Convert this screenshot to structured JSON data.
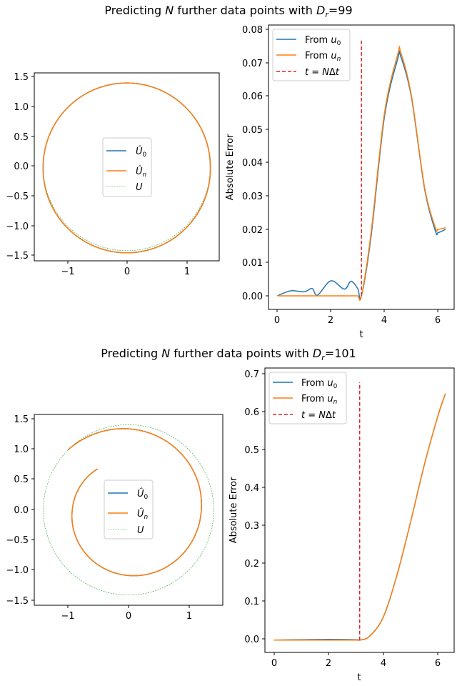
{
  "figure": {
    "colors": {
      "u0": "#1f77b4",
      "un": "#ff7f0e",
      "exact": "#2ca02c",
      "marker": "#d62728"
    },
    "panels": [
      {
        "title": "Predicting N further data points with D_r=99",
        "title_parts": {
          "pre": "Predicting ",
          "N": "N",
          "mid": " further data points with ",
          "D": "D",
          "sub": "r",
          "post": "=99"
        },
        "phase": {
          "xticks": [
            "−1",
            "0",
            "1"
          ],
          "yticks": [
            "1.5",
            "1.0",
            "0.5",
            "0.0",
            "−0.5",
            "−1.0",
            "−1.5"
          ],
          "legend": [
            "Û0",
            "Ûn",
            "U"
          ]
        },
        "error": {
          "xlabel": "t",
          "ylabel": "Absolute Error",
          "xticks": [
            "0",
            "2",
            "4",
            "6"
          ],
          "yticks": [
            "0.00",
            "0.01",
            "0.02",
            "0.03",
            "0.04",
            "0.05",
            "0.06",
            "0.07",
            "0.08"
          ],
          "legend": [
            "From u0",
            "From un",
            "t = NΔt"
          ]
        }
      },
      {
        "title": "Predicting N further data points with D_r=101",
        "title_parts": {
          "pre": "Predicting ",
          "N": "N",
          "mid": " further data points with ",
          "D": "D",
          "sub": "r",
          "post": "=101"
        },
        "phase": {
          "xticks": [
            "−1",
            "0",
            "1"
          ],
          "yticks": [
            "1.5",
            "1.0",
            "0.5",
            "0.0",
            "−0.5",
            "−1.0",
            "−1.5"
          ],
          "legend": [
            "Û0",
            "Ûn",
            "U"
          ]
        },
        "error": {
          "xlabel": "t",
          "ylabel": "Absolute Error",
          "xticks": [
            "0",
            "2",
            "4",
            "6"
          ],
          "yticks": [
            "0.0",
            "0.1",
            "0.2",
            "0.3",
            "0.4",
            "0.5",
            "0.6",
            "0.7"
          ],
          "legend": [
            "From u0",
            "From un",
            "t = NΔt"
          ]
        }
      }
    ]
  },
  "chart_data": [
    {
      "type": "line",
      "title": "Predicting N further data points with D_r=99",
      "xlim": [
        -1.56,
        1.56
      ],
      "ylim": [
        -1.58,
        1.58
      ],
      "series": [
        {
          "name": "Û0",
          "style": "solid",
          "x": [
            -1.0,
            -1.41,
            0,
            1.41,
            0
          ],
          "y": [
            1.0,
            0,
            -1.44,
            0,
            1.41
          ]
        },
        {
          "name": "Ûn",
          "style": "solid",
          "x": [
            -1.0,
            -1.41,
            0,
            1.41,
            0
          ],
          "y": [
            1.0,
            0,
            -1.44,
            0,
            1.41
          ]
        },
        {
          "name": "U",
          "style": "dashed",
          "x": [
            -1.0,
            -1.41,
            0,
            1.41,
            0
          ],
          "y": [
            1.0,
            0,
            -1.41,
            0,
            1.41
          ]
        }
      ],
      "spiral": {
        "start_angle_deg": 135,
        "end_angle_deg": 495,
        "r_start": 1.41,
        "r_end": 1.41,
        "bulge": 0.035
      },
      "grid": false,
      "legend": "center"
    },
    {
      "type": "line",
      "title": "Predicting N further data points with D_r=99",
      "xlabel": "t",
      "ylabel": "Absolute Error",
      "xlim": [
        -0.33,
        6.6
      ],
      "ylim": [
        -0.0041,
        0.0815
      ],
      "x": [
        0,
        0.5,
        1.0,
        1.3,
        1.5,
        2.0,
        2.5,
        2.75,
        3.0,
        3.14,
        3.5,
        4.0,
        4.5,
        4.6,
        5.0,
        5.5,
        5.9,
        6.0,
        6.28
      ],
      "series": [
        {
          "name": "From u0",
          "values": [
            0,
            0.0015,
            0.0012,
            0.0022,
            0.0002,
            0.0045,
            0.002,
            0.0044,
            0.0022,
            0,
            0.018,
            0.054,
            0.0715,
            0.0722,
            0.06,
            0.032,
            0.0195,
            0.019,
            0.02
          ]
        },
        {
          "name": "From un",
          "values": [
            0,
            0,
            0,
            0,
            0,
            0,
            0,
            0,
            0,
            0,
            0.019,
            0.055,
            0.0728,
            0.0735,
            0.0605,
            0.0325,
            0.0205,
            0.02,
            0.0205
          ]
        }
      ],
      "vline": {
        "name": "t = NΔt",
        "x": 3.14,
        "ymin": 0,
        "ymax": 0.077
      },
      "grid": false,
      "legend": "top-left"
    },
    {
      "type": "line",
      "title": "Predicting N further data points with D_r=101",
      "xlim": [
        -1.56,
        1.56
      ],
      "ylim": [
        -1.58,
        1.58
      ],
      "series": [
        {
          "name": "Û0",
          "style": "solid",
          "x": [
            -1.0,
            0,
            1.41,
            0,
            -1.11,
            -0.75
          ],
          "y": [
            1.0,
            1.41,
            0,
            -1.43,
            -0.45,
            0.4
          ]
        },
        {
          "name": "Ûn",
          "style": "solid",
          "x": [
            -1.0,
            0,
            1.41,
            0,
            -1.11,
            -0.75
          ],
          "y": [
            1.0,
            1.41,
            0,
            -1.43,
            -0.45,
            0.4
          ]
        },
        {
          "name": "U",
          "style": "dashed",
          "x": [
            -1.0,
            0,
            1.41,
            0,
            -1.41,
            -1.0
          ],
          "y": [
            1.0,
            1.41,
            0,
            -1.41,
            0,
            1.0
          ]
        }
      ],
      "spiral": {
        "start_angle_deg": 135,
        "end_angle_deg": -233,
        "r_start": 1.41,
        "r_end": 0.85,
        "bulge": 0.02
      },
      "grid": false,
      "legend": "center"
    },
    {
      "type": "line",
      "title": "Predicting N further data points with D_r=101",
      "xlabel": "t",
      "ylabel": "Absolute Error",
      "xlim": [
        -0.33,
        6.6
      ],
      "ylim": [
        -0.0325,
        0.7175
      ],
      "x": [
        0,
        1.0,
        2.0,
        3.0,
        3.14,
        3.5,
        4.0,
        4.5,
        5.0,
        5.5,
        6.0,
        6.28
      ],
      "series": [
        {
          "name": "From u0",
          "values": [
            0,
            0.001,
            0.002,
            0.001,
            0,
            0.01,
            0.06,
            0.17,
            0.31,
            0.46,
            0.59,
            0.65
          ]
        },
        {
          "name": "From un",
          "values": [
            0,
            0,
            0,
            0,
            0,
            0.01,
            0.06,
            0.17,
            0.31,
            0.46,
            0.59,
            0.65
          ]
        }
      ],
      "vline": {
        "name": "t = NΔt",
        "x": 3.14,
        "ymin": 0,
        "ymax": 0.68
      },
      "grid": false,
      "legend": "top-left"
    }
  ]
}
